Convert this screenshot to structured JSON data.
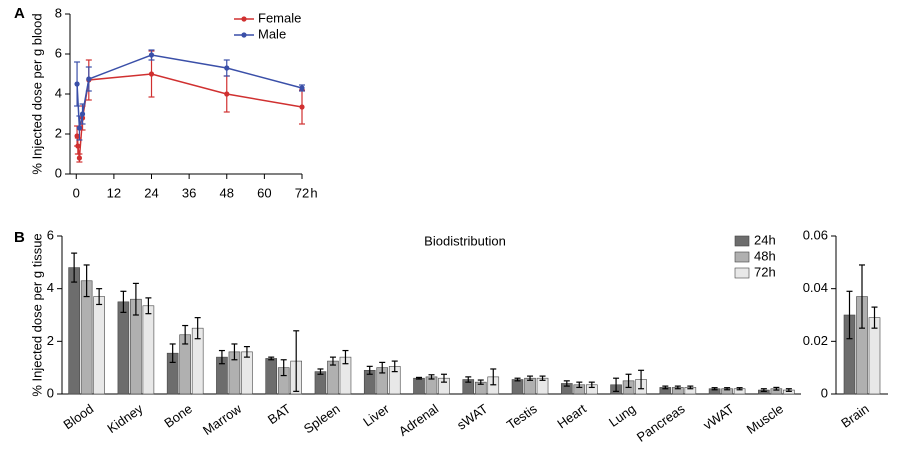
{
  "chart_data": [
    {
      "type": "line",
      "panel": "A",
      "ylabel": "% Injected dose per g blood",
      "xlabel": "h",
      "xlim": [
        -2,
        72
      ],
      "xticks": [
        0,
        12,
        24,
        36,
        48,
        60,
        72
      ],
      "ylim": [
        0,
        8
      ],
      "yticks": [
        0,
        2,
        4,
        6,
        8
      ],
      "legend": "top-right",
      "series": [
        {
          "name": "Female",
          "color": "#d03030",
          "x": [
            0.25,
            0.5,
            1,
            2,
            4,
            24,
            48,
            72
          ],
          "values": [
            1.9,
            1.4,
            0.8,
            2.8,
            4.7,
            5.0,
            4.0,
            3.35
          ],
          "errors": [
            0.5,
            0.4,
            0.2,
            0.6,
            1.0,
            1.15,
            0.9,
            0.85
          ]
        },
        {
          "name": "Male",
          "color": "#3a4fa8",
          "x": [
            0.25,
            1,
            2,
            4,
            24,
            48,
            72
          ],
          "values": [
            4.5,
            2.3,
            3.0,
            4.75,
            5.95,
            5.3,
            4.3
          ],
          "errors": [
            1.1,
            0.6,
            0.5,
            0.6,
            0.25,
            0.4,
            0.15
          ]
        }
      ]
    },
    {
      "type": "bar",
      "panel": "B",
      "title": "Biodistribution",
      "ylabel": "% Injected dose per g tissue",
      "ylim": [
        0,
        6
      ],
      "yticks": [
        0,
        2,
        4,
        6
      ],
      "legend": "top-right",
      "categories": [
        "Blood",
        "Kidney",
        "Bone",
        "Marrow",
        "BAT",
        "Spleen",
        "Liver",
        "Adrenal",
        "sWAT",
        "Testis",
        "Heart",
        "Lung",
        "Pancreas",
        "vWAT",
        "Muscle"
      ],
      "category_colors": [
        "#000000",
        "#000000",
        "#c8242b",
        "#000000",
        "#c8242b",
        "#000000",
        "#000000",
        "#000000",
        "#c8242b",
        "#000000",
        "#000000",
        "#000000",
        "#000000",
        "#c8242b",
        "#000000"
      ],
      "series": [
        {
          "name": "24h",
          "color": "#6d6d6d",
          "values": [
            4.8,
            3.5,
            1.55,
            1.4,
            1.35,
            0.85,
            0.9,
            0.6,
            0.55,
            0.55,
            0.4,
            0.35,
            0.25,
            0.2,
            0.15
          ],
          "errors": [
            0.55,
            0.4,
            0.35,
            0.25,
            0.05,
            0.1,
            0.15,
            0.03,
            0.1,
            0.05,
            0.1,
            0.25,
            0.05,
            0.04,
            0.05
          ]
        },
        {
          "name": "48h",
          "color": "#b0b0b0",
          "values": [
            4.3,
            3.6,
            2.25,
            1.6,
            1.0,
            1.25,
            1.0,
            0.65,
            0.45,
            0.6,
            0.35,
            0.5,
            0.25,
            0.2,
            0.2
          ],
          "errors": [
            0.6,
            0.6,
            0.35,
            0.3,
            0.3,
            0.15,
            0.2,
            0.08,
            0.08,
            0.08,
            0.1,
            0.25,
            0.05,
            0.04,
            0.05
          ]
        },
        {
          "name": "72h",
          "color": "#e8e8e8",
          "values": [
            3.7,
            3.35,
            2.5,
            1.6,
            1.25,
            1.4,
            1.05,
            0.6,
            0.65,
            0.6,
            0.35,
            0.55,
            0.25,
            0.2,
            0.15
          ],
          "errors": [
            0.3,
            0.3,
            0.4,
            0.2,
            1.15,
            0.25,
            0.2,
            0.15,
            0.3,
            0.08,
            0.1,
            0.35,
            0.05,
            0.04,
            0.05
          ]
        }
      ]
    },
    {
      "type": "bar",
      "ylim": [
        0,
        0.06
      ],
      "yticks": [
        0,
        0.02,
        0.04,
        0.06
      ],
      "categories": [
        "Brain"
      ],
      "category_colors": [
        "#c8242b"
      ],
      "series": [
        {
          "color": "#6d6d6d",
          "values": [
            0.03
          ],
          "errors": [
            0.009
          ]
        },
        {
          "color": "#b0b0b0",
          "values": [
            0.037
          ],
          "errors": [
            0.012
          ]
        },
        {
          "color": "#e8e8e8",
          "values": [
            0.029
          ],
          "errors": [
            0.004
          ]
        }
      ]
    }
  ]
}
